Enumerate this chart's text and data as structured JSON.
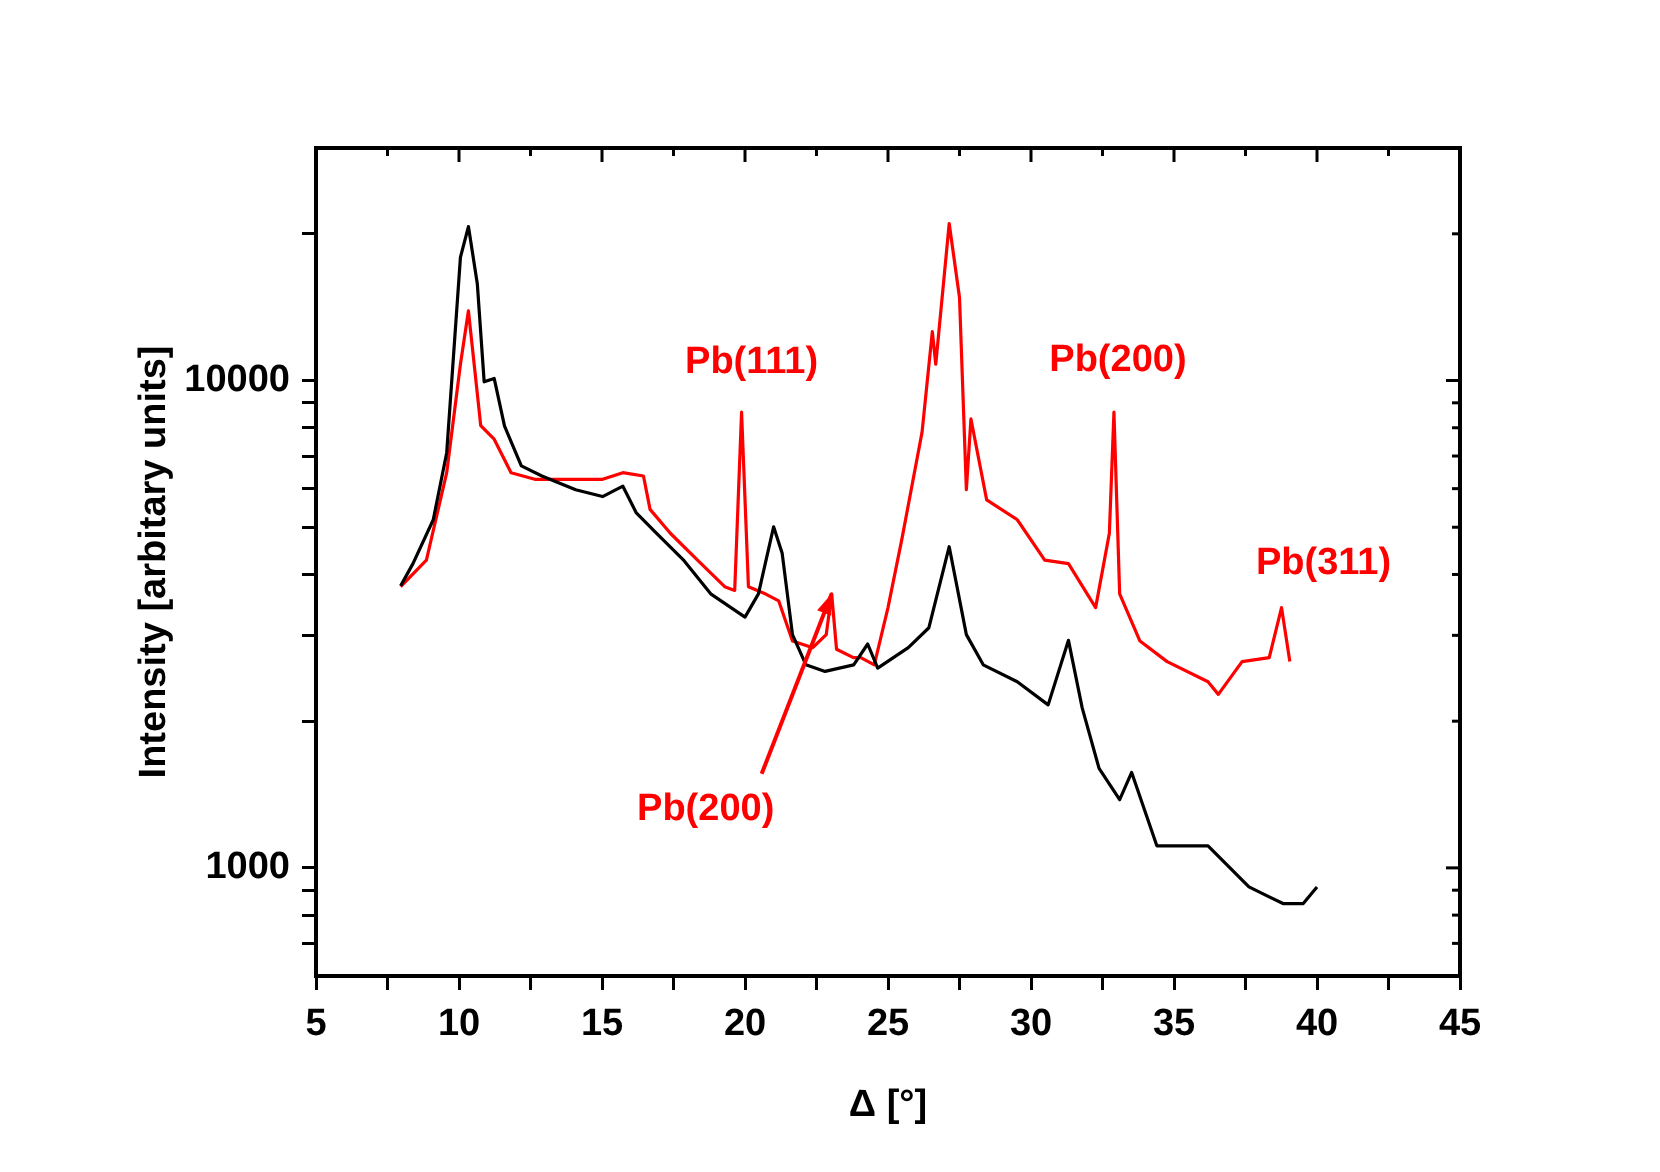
{
  "chart_data": {
    "type": "line",
    "xlabel": "Δ [°]",
    "ylabel": "Intensity [arbitary units]",
    "log": "y",
    "grid": false,
    "legend": false,
    "marker": "none",
    "line_style": "solid",
    "xlim": [
      5,
      45
    ],
    "ylim": [
      600,
      30000
    ],
    "xticks": [
      5,
      {
        "value": 7.5,
        "label": null
      },
      10,
      {
        "value": 12.5,
        "label": null
      },
      15,
      {
        "value": 17.5,
        "label": null
      },
      20,
      {
        "value": 22.5,
        "label": null
      },
      25,
      {
        "value": 27.5,
        "label": null
      },
      30,
      {
        "value": 32.5,
        "label": null
      },
      35,
      {
        "value": 37.5,
        "label": null
      },
      40,
      {
        "value": 42.5,
        "label": null
      },
      45
    ],
    "yticks": [
      {
        "value": 700,
        "label": null
      },
      {
        "value": 800,
        "label": null
      },
      {
        "value": 900,
        "label": null
      },
      1000,
      {
        "value": 2000,
        "label": null
      },
      {
        "value": 3000,
        "label": null
      },
      {
        "value": 4000,
        "label": null
      },
      {
        "value": 5000,
        "label": null
      },
      {
        "value": 6000,
        "label": null
      },
      {
        "value": 7000,
        "label": null
      },
      {
        "value": 8000,
        "label": null
      },
      {
        "value": 9000,
        "label": null
      },
      10000,
      {
        "value": 20000,
        "label": null
      }
    ],
    "series": [
      {
        "color": "#000000",
        "x": [
          7.96,
          8.39,
          9.1,
          9.57,
          10.05,
          10.33,
          10.64,
          10.88,
          11.23,
          11.59,
          12.18,
          12.9,
          14.08,
          15.02,
          15.73,
          16.2,
          16.9,
          17.87,
          18.8,
          20.0,
          20.47,
          21.0,
          21.3,
          21.66,
          22.13,
          22.8,
          23.8,
          24.29,
          24.64,
          25.71,
          26.43,
          27.14,
          27.74,
          28.33,
          29.52,
          30.6,
          31.31,
          31.79,
          32.38,
          33.1,
          33.52,
          34.4,
          36.19,
          37.62,
          38.81,
          39.52,
          40.0
        ],
        "values": [
          3790,
          4210,
          5180,
          7110,
          17900,
          20700,
          15800,
          9940,
          10100,
          8070,
          6680,
          6370,
          5970,
          5780,
          6070,
          5350,
          4860,
          4270,
          3650,
          3270,
          3650,
          5010,
          4420,
          3010,
          2610,
          2530,
          2610,
          2880,
          2570,
          2830,
          3110,
          4560,
          3010,
          2610,
          2410,
          2160,
          2930,
          2130,
          1600,
          1380,
          1570,
          1110,
          1110,
          914,
          845,
          845,
          914
        ]
      },
      {
        "color": "#ff0000",
        "x": [
          7.96,
          8.86,
          9.57,
          10.05,
          10.33,
          10.76,
          11.23,
          11.82,
          12.65,
          14.08,
          15.02,
          15.73,
          16.45,
          16.68,
          17.39,
          18.34,
          19.29,
          19.64,
          19.88,
          20.12,
          20.71,
          21.18,
          21.66,
          22.37,
          22.84,
          23.03,
          23.2,
          23.79,
          24.05,
          24.52,
          25.0,
          25.48,
          26.19,
          26.55,
          26.67,
          27.14,
          27.5,
          27.74,
          27.9,
          28.45,
          29.52,
          30.48,
          31.31,
          32.26,
          32.74,
          32.9,
          33.1,
          33.81,
          34.76,
          36.19,
          36.55,
          37.38,
          38.33,
          38.76,
          39.05
        ],
        "values": [
          3776,
          4280,
          6470,
          10800,
          13900,
          8080,
          7580,
          6470,
          6270,
          6270,
          6270,
          6470,
          6370,
          5440,
          4860,
          4280,
          3776,
          3710,
          8610,
          3776,
          3650,
          3530,
          2920,
          2830,
          3010,
          3650,
          2810,
          2700,
          2700,
          2610,
          3420,
          4710,
          7830,
          12600,
          10800,
          21000,
          14800,
          5970,
          8340,
          5690,
          5180,
          4280,
          4210,
          3420,
          4860,
          8610,
          3650,
          2920,
          2650,
          2410,
          2270,
          2650,
          2700,
          3420,
          2650
        ]
      }
    ],
    "annotations": [
      {
        "text": "Pb(111)",
        "x": 19.88,
        "y": 8610
      },
      {
        "text": "Pb(200)",
        "x": 32.9,
        "y": 8610
      },
      {
        "text": "Pb(311)",
        "x": 38.76,
        "y": 3420
      },
      {
        "text": "Pb(200)",
        "x": 23.03,
        "y": 3650
      }
    ]
  }
}
